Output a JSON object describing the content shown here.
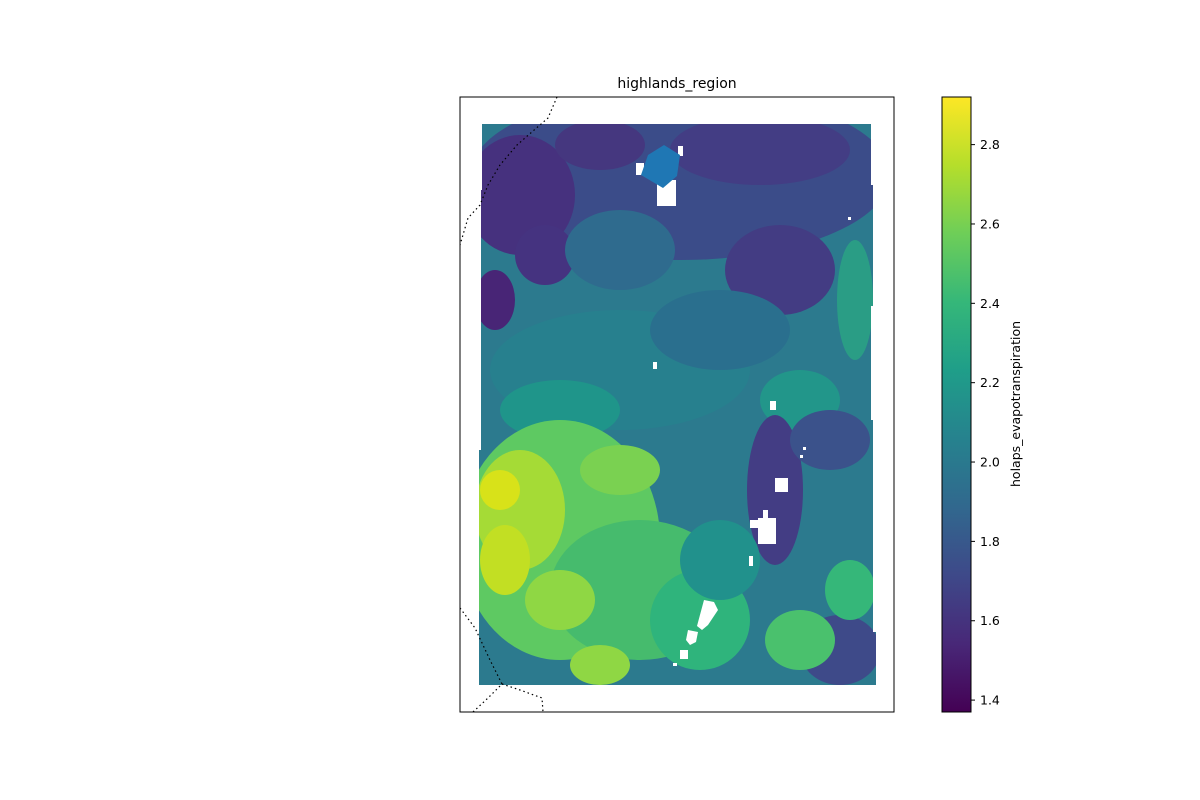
{
  "title": "highlands_region",
  "colorbar": {
    "label": "holaps_evapotranspiration",
    "min": 1.37,
    "max": 2.92,
    "ticks": [
      "1.4",
      "1.6",
      "1.8",
      "2.0",
      "2.2",
      "2.4",
      "2.6",
      "2.8"
    ],
    "colormap": [
      "#440154",
      "#482878",
      "#3e4989",
      "#31688e",
      "#26828e",
      "#1f9e89",
      "#35b779",
      "#6ece58",
      "#b5de2b",
      "#fde725"
    ]
  },
  "map": {
    "mask_polygon_color": "#1f77b4",
    "border_style": "dotted",
    "missing_value_color": "#ffffff"
  }
}
